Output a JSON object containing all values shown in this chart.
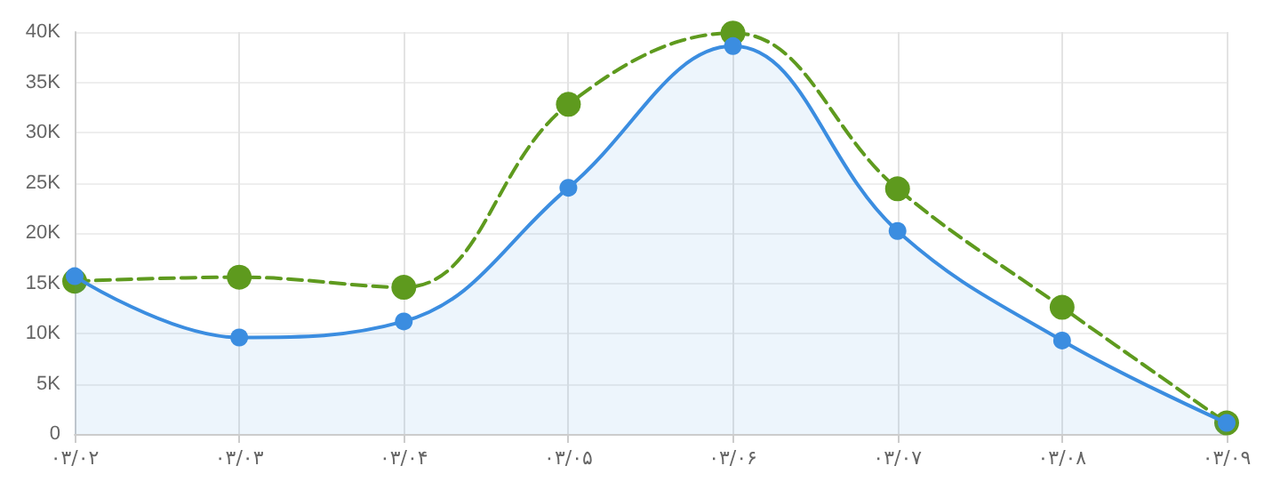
{
  "chart_data": {
    "type": "line",
    "categories": [
      "۰۳/۰۲",
      "۰۳/۰۳",
      "۰۳/۰۴",
      "۰۳/۰۵",
      "۰۳/۰۶",
      "۰۳/۰۷",
      "۰۳/۰۸",
      "۰۳/۰۹"
    ],
    "series": [
      {
        "type": "area",
        "color": "#3b8de0",
        "line_style": "solid",
        "values": [
          15700,
          9600,
          11200,
          24500,
          38600,
          20200,
          9300,
          1100
        ]
      },
      {
        "type": "line",
        "color": "#5e9a1e",
        "line_style": "dashed",
        "values": [
          15200,
          15600,
          14600,
          32800,
          39900,
          24400,
          12600,
          1100
        ]
      }
    ],
    "ylim": [
      0,
      40000
    ],
    "yticks": [
      0,
      {
        "value": 5000,
        "label": "5K"
      },
      {
        "value": 10000,
        "label": "10K"
      },
      {
        "value": 15000,
        "label": "15K"
      },
      {
        "value": 20000,
        "label": "20K"
      },
      {
        "value": 25000,
        "label": "25K"
      },
      {
        "value": 30000,
        "label": "30K"
      },
      {
        "value": 35000,
        "label": "35K"
      },
      {
        "value": 40000,
        "label": "40K"
      }
    ],
    "grid": true,
    "marker": "circle"
  }
}
